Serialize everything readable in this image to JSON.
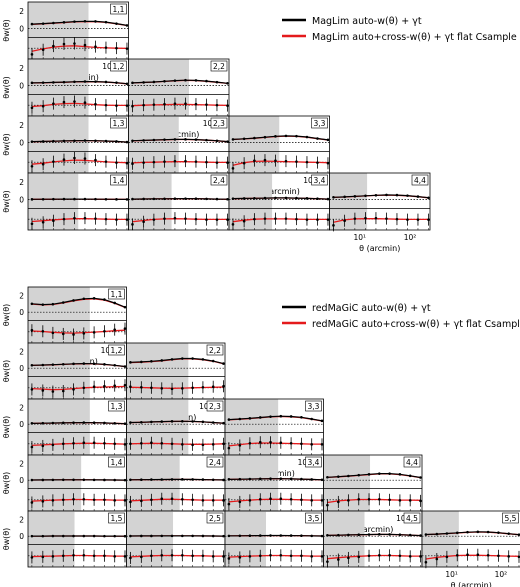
{
  "figure": {
    "ylabel": "θw(θ)",
    "xlabel": "θ (arcmin)",
    "xticks": [
      "10¹",
      "10²"
    ]
  },
  "chart_data": [
    {
      "type": "line",
      "title": "",
      "n": 4,
      "legend": [
        {
          "name": "MagLim auto-w(θ) + γt",
          "color": "#000000"
        },
        {
          "name": "MagLim auto+cross-w(θ) + γt flat Csample prior",
          "color": "#e41a1c"
        }
      ],
      "legend_placement": "top-right",
      "xlabel": "θ (arcmin)",
      "ylabel": "θw(θ)",
      "x_scale": "log",
      "xlim": [
        2.5,
        250
      ],
      "upper_ylim": [
        -1,
        3
      ],
      "upper_yticks": [
        0,
        2
      ],
      "shaded_cut_arcmin": [
        40,
        40,
        40,
        40,
        25,
        25,
        25,
        18,
        18,
        14
      ],
      "theta_arcmin": [
        3,
        5,
        8,
        13,
        21,
        34,
        55,
        89,
        144,
        233
      ],
      "panels": [
        {
          "label": "1,1",
          "auto_w": [
            0.5,
            0.55,
            0.62,
            0.7,
            0.78,
            0.82,
            0.8,
            0.72,
            0.55,
            0.35
          ],
          "cross_dw": [
            -1.2,
            -0.3,
            0.4,
            0.8,
            0.9,
            0.6,
            0.3,
            0.1,
            0.0,
            -0.1
          ]
        },
        {
          "label": "1,2",
          "auto_w": [
            0.3,
            0.32,
            0.35,
            0.38,
            0.42,
            0.45,
            0.44,
            0.4,
            0.32,
            0.2
          ],
          "cross_dw": [
            -0.5,
            -0.2,
            0.3,
            0.6,
            0.7,
            0.5,
            0.2,
            0.0,
            -0.1,
            -0.1
          ]
        },
        {
          "label": "2,2",
          "auto_w": [
            0.3,
            0.35,
            0.4,
            0.48,
            0.55,
            0.6,
            0.58,
            0.5,
            0.38,
            0.25
          ],
          "cross_dw": [
            -0.2,
            0.0,
            0.1,
            0.2,
            0.3,
            0.3,
            0.2,
            0.1,
            0.0,
            -0.1
          ]
        },
        {
          "label": "1,3",
          "auto_w": [
            0.1,
            0.12,
            0.15,
            0.18,
            0.2,
            0.22,
            0.2,
            0.17,
            0.12,
            0.05
          ],
          "cross_dw": [
            -0.8,
            -0.4,
            0.1,
            0.5,
            0.8,
            0.7,
            0.4,
            0.1,
            -0.1,
            -0.2
          ]
        },
        {
          "label": "2,3",
          "auto_w": [
            0.2,
            0.24,
            0.28,
            0.32,
            0.35,
            0.36,
            0.33,
            0.27,
            0.2,
            0.1
          ],
          "cross_dw": [
            -0.3,
            -0.1,
            0.0,
            0.1,
            0.2,
            0.2,
            0.1,
            0.0,
            -0.1,
            -0.1
          ]
        },
        {
          "label": "3,3",
          "auto_w": [
            0.35,
            0.42,
            0.5,
            0.6,
            0.7,
            0.75,
            0.72,
            0.62,
            0.45,
            0.3
          ],
          "cross_dw": [
            -1.2,
            -0.2,
            0.3,
            0.4,
            0.3,
            0.2,
            0.1,
            0.0,
            -0.1,
            -0.2
          ]
        },
        {
          "label": "1,4",
          "auto_w": [
            0.02,
            0.03,
            0.04,
            0.05,
            0.05,
            0.05,
            0.04,
            0.03,
            0.02,
            0.01
          ],
          "cross_dw": [
            -0.9,
            -0.6,
            -0.3,
            0.0,
            0.2,
            0.2,
            0.1,
            0.0,
            -0.1,
            -0.1
          ]
        },
        {
          "label": "2,4",
          "auto_w": [
            0.05,
            0.06,
            0.07,
            0.08,
            0.09,
            0.1,
            0.09,
            0.07,
            0.05,
            0.03
          ],
          "cross_dw": [
            -1.0,
            -0.5,
            -0.1,
            0.1,
            0.2,
            0.1,
            0.0,
            -0.1,
            -0.1,
            -0.1
          ]
        },
        {
          "label": "3,4",
          "auto_w": [
            0.1,
            0.12,
            0.14,
            0.16,
            0.18,
            0.18,
            0.16,
            0.13,
            0.09,
            0.05
          ],
          "cross_dw": [
            -1.0,
            -0.4,
            0.0,
            0.1,
            0.1,
            0.1,
            0.0,
            -0.1,
            -0.1,
            -0.1
          ]
        },
        {
          "label": "4,4",
          "auto_w": [
            0.25,
            0.3,
            0.36,
            0.42,
            0.48,
            0.52,
            0.5,
            0.44,
            0.33,
            0.2
          ],
          "cross_dw": [
            -1.2,
            -0.3,
            0.1,
            0.2,
            0.2,
            0.1,
            0.0,
            -0.1,
            -0.1,
            -0.1
          ]
        }
      ]
    },
    {
      "type": "line",
      "title": "",
      "n": 5,
      "legend": [
        {
          "name": "redMaGiC auto-w(θ) + γt",
          "color": "#000000"
        },
        {
          "name": "redMaGiC auto+cross-w(θ) + γt flat Csample prior",
          "color": "#e41a1c"
        }
      ],
      "legend_placement": "top-right",
      "xlabel": "θ (arcmin)",
      "ylabel": "θw(θ)",
      "x_scale": "log",
      "xlim": [
        2.5,
        250
      ],
      "upper_ylim": [
        -1,
        3
      ],
      "upper_yticks": [
        0,
        2
      ],
      "shaded_cut_arcmin": [
        45,
        45,
        45,
        45,
        45,
        30,
        30,
        30,
        30,
        22,
        22,
        22,
        17,
        17,
        14
      ],
      "theta_arcmin": [
        3,
        5,
        8,
        13,
        21,
        34,
        55,
        89,
        144,
        233
      ],
      "panels": [
        {
          "label": "1,1",
          "auto_w": [
            1.0,
            0.9,
            0.95,
            1.15,
            1.4,
            1.6,
            1.65,
            1.5,
            1.1,
            0.6
          ],
          "cross_dw": [
            0.3,
            0.1,
            -0.2,
            -0.4,
            -0.5,
            -0.3,
            -0.1,
            0.1,
            0.4,
            0.6
          ]
        },
        {
          "label": "1,2",
          "auto_w": [
            0.35,
            0.38,
            0.42,
            0.47,
            0.52,
            0.55,
            0.53,
            0.46,
            0.35,
            0.2
          ],
          "cross_dw": [
            -0.3,
            -0.5,
            -0.7,
            -0.6,
            -0.3,
            0.0,
            0.2,
            0.3,
            0.4,
            0.5
          ]
        },
        {
          "label": "2,2",
          "auto_w": [
            0.7,
            0.75,
            0.82,
            0.92,
            1.05,
            1.15,
            1.15,
            1.05,
            0.85,
            0.55
          ],
          "cross_dw": [
            0.2,
            0.1,
            0.0,
            -0.1,
            -0.2,
            -0.1,
            0.0,
            0.1,
            0.2,
            0.3
          ]
        },
        {
          "label": "1,3",
          "auto_w": [
            0.1,
            0.12,
            0.14,
            0.16,
            0.18,
            0.19,
            0.18,
            0.15,
            0.11,
            0.06
          ],
          "cross_dw": [
            -0.6,
            -0.4,
            -0.2,
            0.0,
            0.1,
            0.2,
            0.2,
            0.1,
            0.0,
            -0.1
          ]
        },
        {
          "label": "2,3",
          "auto_w": [
            0.2,
            0.23,
            0.27,
            0.31,
            0.34,
            0.35,
            0.33,
            0.28,
            0.2,
            0.12
          ],
          "cross_dw": [
            0.0,
            0.1,
            0.2,
            0.1,
            0.0,
            -0.1,
            -0.2,
            -0.2,
            -0.1,
            0.0
          ]
        },
        {
          "label": "3,3",
          "auto_w": [
            0.55,
            0.62,
            0.7,
            0.8,
            0.9,
            0.95,
            0.92,
            0.82,
            0.62,
            0.4
          ],
          "cross_dw": [
            -0.8,
            -0.3,
            0.1,
            0.3,
            0.3,
            0.2,
            0.1,
            0.0,
            -0.1,
            -0.1
          ]
        },
        {
          "label": "1,4",
          "auto_w": [
            0.02,
            0.03,
            0.04,
            0.05,
            0.05,
            0.05,
            0.04,
            0.03,
            0.02,
            0.01
          ],
          "cross_dw": [
            -0.5,
            -0.3,
            -0.1,
            0.0,
            0.1,
            0.1,
            0.0,
            0.0,
            -0.1,
            -0.1
          ]
        },
        {
          "label": "2,4",
          "auto_w": [
            0.05,
            0.06,
            0.07,
            0.08,
            0.09,
            0.1,
            0.09,
            0.07,
            0.05,
            0.03
          ],
          "cross_dw": [
            -0.4,
            -0.2,
            0.0,
            0.2,
            0.2,
            0.1,
            0.0,
            -0.1,
            -0.1,
            -0.1
          ]
        },
        {
          "label": "3,4",
          "auto_w": [
            0.1,
            0.12,
            0.14,
            0.16,
            0.18,
            0.18,
            0.16,
            0.13,
            0.09,
            0.05
          ],
          "cross_dw": [
            -0.8,
            -0.4,
            -0.1,
            0.1,
            0.2,
            0.2,
            0.1,
            0.0,
            -0.1,
            -0.1
          ]
        },
        {
          "label": "4,4",
          "auto_w": [
            0.35,
            0.42,
            0.5,
            0.6,
            0.7,
            0.78,
            0.78,
            0.7,
            0.52,
            0.32
          ],
          "cross_dw": [
            -1.0,
            -0.4,
            -0.1,
            0.1,
            0.1,
            0.1,
            0.0,
            -0.1,
            -0.1,
            -0.2
          ]
        },
        {
          "label": "1,5",
          "auto_w": [
            0.01,
            0.01,
            0.02,
            0.02,
            0.02,
            0.02,
            0.02,
            0.01,
            0.01,
            0.0
          ],
          "cross_dw": [
            -0.3,
            -0.2,
            -0.1,
            0.0,
            0.1,
            0.1,
            0.0,
            0.0,
            -0.1,
            -0.1
          ]
        },
        {
          "label": "2,5",
          "auto_w": [
            0.02,
            0.03,
            0.03,
            0.04,
            0.04,
            0.04,
            0.04,
            0.03,
            0.02,
            0.01
          ],
          "cross_dw": [
            -0.4,
            -0.2,
            0.0,
            0.1,
            0.1,
            0.1,
            0.0,
            0.0,
            -0.1,
            -0.1
          ]
        },
        {
          "label": "3,5",
          "auto_w": [
            0.04,
            0.05,
            0.06,
            0.07,
            0.08,
            0.08,
            0.07,
            0.06,
            0.04,
            0.02
          ],
          "cross_dw": [
            -0.5,
            -0.3,
            -0.1,
            0.0,
            0.1,
            0.1,
            0.0,
            0.0,
            -0.1,
            -0.1
          ]
        },
        {
          "label": "4,5",
          "auto_w": [
            0.1,
            0.12,
            0.15,
            0.18,
            0.2,
            0.22,
            0.21,
            0.18,
            0.13,
            0.07
          ],
          "cross_dw": [
            -1.1,
            -0.7,
            -0.4,
            -0.2,
            0.0,
            0.1,
            0.1,
            0.0,
            -0.1,
            -0.1
          ]
        },
        {
          "label": "5,5",
          "auto_w": [
            0.2,
            0.25,
            0.32,
            0.4,
            0.48,
            0.52,
            0.5,
            0.42,
            0.3,
            0.18
          ],
          "cross_dw": [
            -1.2,
            -0.6,
            -0.2,
            0.1,
            0.2,
            0.2,
            0.1,
            0.0,
            -0.1,
            -0.2
          ]
        }
      ]
    }
  ]
}
